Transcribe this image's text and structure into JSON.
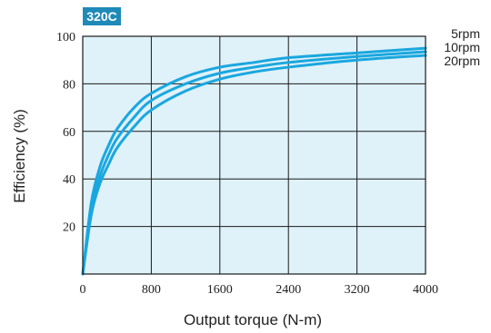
{
  "chart_data": {
    "type": "line",
    "badge": "320C",
    "xlabel": "Output torque (N-m)",
    "ylabel": "Efficiency (%)",
    "xlim": [
      0,
      4000
    ],
    "ylim": [
      0,
      100
    ],
    "xticks": [
      0,
      800,
      1600,
      2400,
      3200,
      4000
    ],
    "yticks": [
      20,
      40,
      60,
      80,
      100
    ],
    "grid": true,
    "legend_position": "right",
    "colors": {
      "plot_bg": "#dff1f9",
      "line": "#1aa7df",
      "badge": "#1f8ab8"
    },
    "series": [
      {
        "name": "5rpm",
        "x": [
          0,
          100,
          200,
          300,
          400,
          600,
          800,
          1200,
          1600,
          2000,
          2400,
          3200,
          4000
        ],
        "y": [
          0,
          30,
          45,
          54,
          61,
          70,
          76,
          83,
          87,
          89,
          91,
          93,
          95
        ]
      },
      {
        "name": "10rpm",
        "x": [
          0,
          100,
          200,
          300,
          400,
          600,
          800,
          1200,
          1600,
          2000,
          2400,
          3200,
          4000
        ],
        "y": [
          0,
          27,
          41,
          50,
          57,
          66,
          73,
          80,
          84.5,
          87,
          89,
          91.5,
          93.5
        ]
      },
      {
        "name": "20rpm",
        "x": [
          0,
          100,
          200,
          300,
          400,
          600,
          800,
          1200,
          1600,
          2000,
          2400,
          3200,
          4000
        ],
        "y": [
          0,
          25,
          38,
          46,
          53,
          62,
          69,
          77,
          82,
          85,
          87,
          90,
          92
        ]
      }
    ]
  }
}
